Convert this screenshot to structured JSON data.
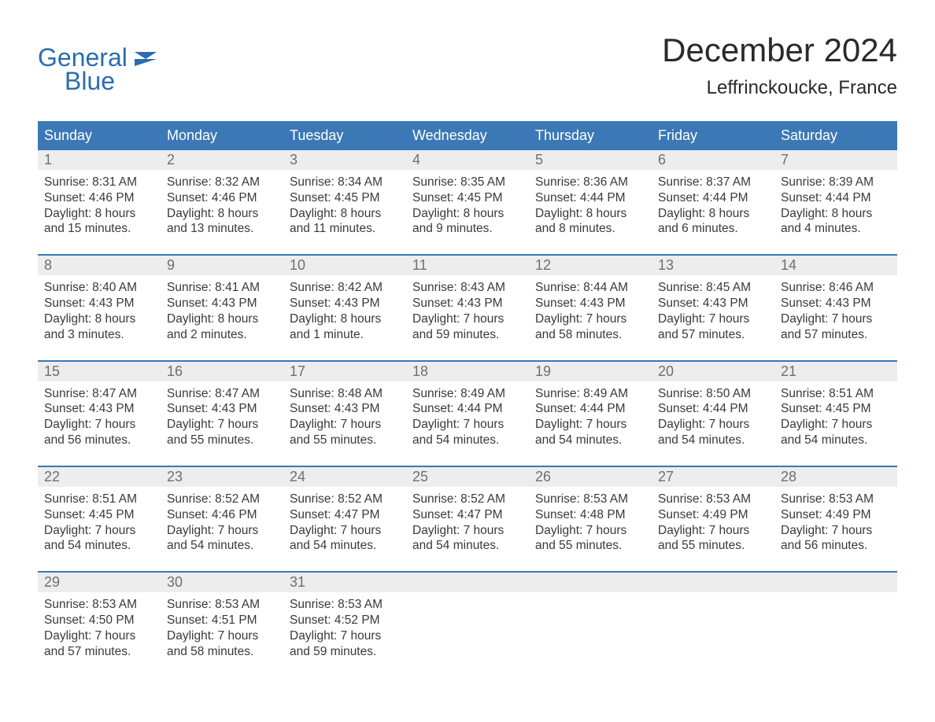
{
  "brand": {
    "line1": "General",
    "line2": "Blue",
    "color": "#2b6cb0"
  },
  "title": "December 2024",
  "location": "Leffrinckoucke, France",
  "colors": {
    "header_bg": "#3b78b5",
    "header_text": "#ffffff",
    "daynum_bg": "#ededed",
    "daynum_text": "#6f6f6f",
    "body_text": "#3a3a3a",
    "rule": "#3b78b5",
    "page_bg": "#ffffff"
  },
  "typography": {
    "title_fontsize": 42,
    "location_fontsize": 24,
    "dayheader_fontsize": 18,
    "daynum_fontsize": 18,
    "details_fontsize": 15.5,
    "font_family": "Arial"
  },
  "calendar": {
    "type": "table",
    "columns": [
      "Sunday",
      "Monday",
      "Tuesday",
      "Wednesday",
      "Thursday",
      "Friday",
      "Saturday"
    ],
    "weeks": [
      [
        {
          "day": "1",
          "sunrise": "Sunrise: 8:31 AM",
          "sunset": "Sunset: 4:46 PM",
          "d1": "Daylight: 8 hours",
          "d2": "and 15 minutes."
        },
        {
          "day": "2",
          "sunrise": "Sunrise: 8:32 AM",
          "sunset": "Sunset: 4:46 PM",
          "d1": "Daylight: 8 hours",
          "d2": "and 13 minutes."
        },
        {
          "day": "3",
          "sunrise": "Sunrise: 8:34 AM",
          "sunset": "Sunset: 4:45 PM",
          "d1": "Daylight: 8 hours",
          "d2": "and 11 minutes."
        },
        {
          "day": "4",
          "sunrise": "Sunrise: 8:35 AM",
          "sunset": "Sunset: 4:45 PM",
          "d1": "Daylight: 8 hours",
          "d2": "and 9 minutes."
        },
        {
          "day": "5",
          "sunrise": "Sunrise: 8:36 AM",
          "sunset": "Sunset: 4:44 PM",
          "d1": "Daylight: 8 hours",
          "d2": "and 8 minutes."
        },
        {
          "day": "6",
          "sunrise": "Sunrise: 8:37 AM",
          "sunset": "Sunset: 4:44 PM",
          "d1": "Daylight: 8 hours",
          "d2": "and 6 minutes."
        },
        {
          "day": "7",
          "sunrise": "Sunrise: 8:39 AM",
          "sunset": "Sunset: 4:44 PM",
          "d1": "Daylight: 8 hours",
          "d2": "and 4 minutes."
        }
      ],
      [
        {
          "day": "8",
          "sunrise": "Sunrise: 8:40 AM",
          "sunset": "Sunset: 4:43 PM",
          "d1": "Daylight: 8 hours",
          "d2": "and 3 minutes."
        },
        {
          "day": "9",
          "sunrise": "Sunrise: 8:41 AM",
          "sunset": "Sunset: 4:43 PM",
          "d1": "Daylight: 8 hours",
          "d2": "and 2 minutes."
        },
        {
          "day": "10",
          "sunrise": "Sunrise: 8:42 AM",
          "sunset": "Sunset: 4:43 PM",
          "d1": "Daylight: 8 hours",
          "d2": "and 1 minute."
        },
        {
          "day": "11",
          "sunrise": "Sunrise: 8:43 AM",
          "sunset": "Sunset: 4:43 PM",
          "d1": "Daylight: 7 hours",
          "d2": "and 59 minutes."
        },
        {
          "day": "12",
          "sunrise": "Sunrise: 8:44 AM",
          "sunset": "Sunset: 4:43 PM",
          "d1": "Daylight: 7 hours",
          "d2": "and 58 minutes."
        },
        {
          "day": "13",
          "sunrise": "Sunrise: 8:45 AM",
          "sunset": "Sunset: 4:43 PM",
          "d1": "Daylight: 7 hours",
          "d2": "and 57 minutes."
        },
        {
          "day": "14",
          "sunrise": "Sunrise: 8:46 AM",
          "sunset": "Sunset: 4:43 PM",
          "d1": "Daylight: 7 hours",
          "d2": "and 57 minutes."
        }
      ],
      [
        {
          "day": "15",
          "sunrise": "Sunrise: 8:47 AM",
          "sunset": "Sunset: 4:43 PM",
          "d1": "Daylight: 7 hours",
          "d2": "and 56 minutes."
        },
        {
          "day": "16",
          "sunrise": "Sunrise: 8:47 AM",
          "sunset": "Sunset: 4:43 PM",
          "d1": "Daylight: 7 hours",
          "d2": "and 55 minutes."
        },
        {
          "day": "17",
          "sunrise": "Sunrise: 8:48 AM",
          "sunset": "Sunset: 4:43 PM",
          "d1": "Daylight: 7 hours",
          "d2": "and 55 minutes."
        },
        {
          "day": "18",
          "sunrise": "Sunrise: 8:49 AM",
          "sunset": "Sunset: 4:44 PM",
          "d1": "Daylight: 7 hours",
          "d2": "and 54 minutes."
        },
        {
          "day": "19",
          "sunrise": "Sunrise: 8:49 AM",
          "sunset": "Sunset: 4:44 PM",
          "d1": "Daylight: 7 hours",
          "d2": "and 54 minutes."
        },
        {
          "day": "20",
          "sunrise": "Sunrise: 8:50 AM",
          "sunset": "Sunset: 4:44 PM",
          "d1": "Daylight: 7 hours",
          "d2": "and 54 minutes."
        },
        {
          "day": "21",
          "sunrise": "Sunrise: 8:51 AM",
          "sunset": "Sunset: 4:45 PM",
          "d1": "Daylight: 7 hours",
          "d2": "and 54 minutes."
        }
      ],
      [
        {
          "day": "22",
          "sunrise": "Sunrise: 8:51 AM",
          "sunset": "Sunset: 4:45 PM",
          "d1": "Daylight: 7 hours",
          "d2": "and 54 minutes."
        },
        {
          "day": "23",
          "sunrise": "Sunrise: 8:52 AM",
          "sunset": "Sunset: 4:46 PM",
          "d1": "Daylight: 7 hours",
          "d2": "and 54 minutes."
        },
        {
          "day": "24",
          "sunrise": "Sunrise: 8:52 AM",
          "sunset": "Sunset: 4:47 PM",
          "d1": "Daylight: 7 hours",
          "d2": "and 54 minutes."
        },
        {
          "day": "25",
          "sunrise": "Sunrise: 8:52 AM",
          "sunset": "Sunset: 4:47 PM",
          "d1": "Daylight: 7 hours",
          "d2": "and 54 minutes."
        },
        {
          "day": "26",
          "sunrise": "Sunrise: 8:53 AM",
          "sunset": "Sunset: 4:48 PM",
          "d1": "Daylight: 7 hours",
          "d2": "and 55 minutes."
        },
        {
          "day": "27",
          "sunrise": "Sunrise: 8:53 AM",
          "sunset": "Sunset: 4:49 PM",
          "d1": "Daylight: 7 hours",
          "d2": "and 55 minutes."
        },
        {
          "day": "28",
          "sunrise": "Sunrise: 8:53 AM",
          "sunset": "Sunset: 4:49 PM",
          "d1": "Daylight: 7 hours",
          "d2": "and 56 minutes."
        }
      ],
      [
        {
          "day": "29",
          "sunrise": "Sunrise: 8:53 AM",
          "sunset": "Sunset: 4:50 PM",
          "d1": "Daylight: 7 hours",
          "d2": "and 57 minutes."
        },
        {
          "day": "30",
          "sunrise": "Sunrise: 8:53 AM",
          "sunset": "Sunset: 4:51 PM",
          "d1": "Daylight: 7 hours",
          "d2": "and 58 minutes."
        },
        {
          "day": "31",
          "sunrise": "Sunrise: 8:53 AM",
          "sunset": "Sunset: 4:52 PM",
          "d1": "Daylight: 7 hours",
          "d2": "and 59 minutes."
        },
        null,
        null,
        null,
        null
      ]
    ]
  }
}
